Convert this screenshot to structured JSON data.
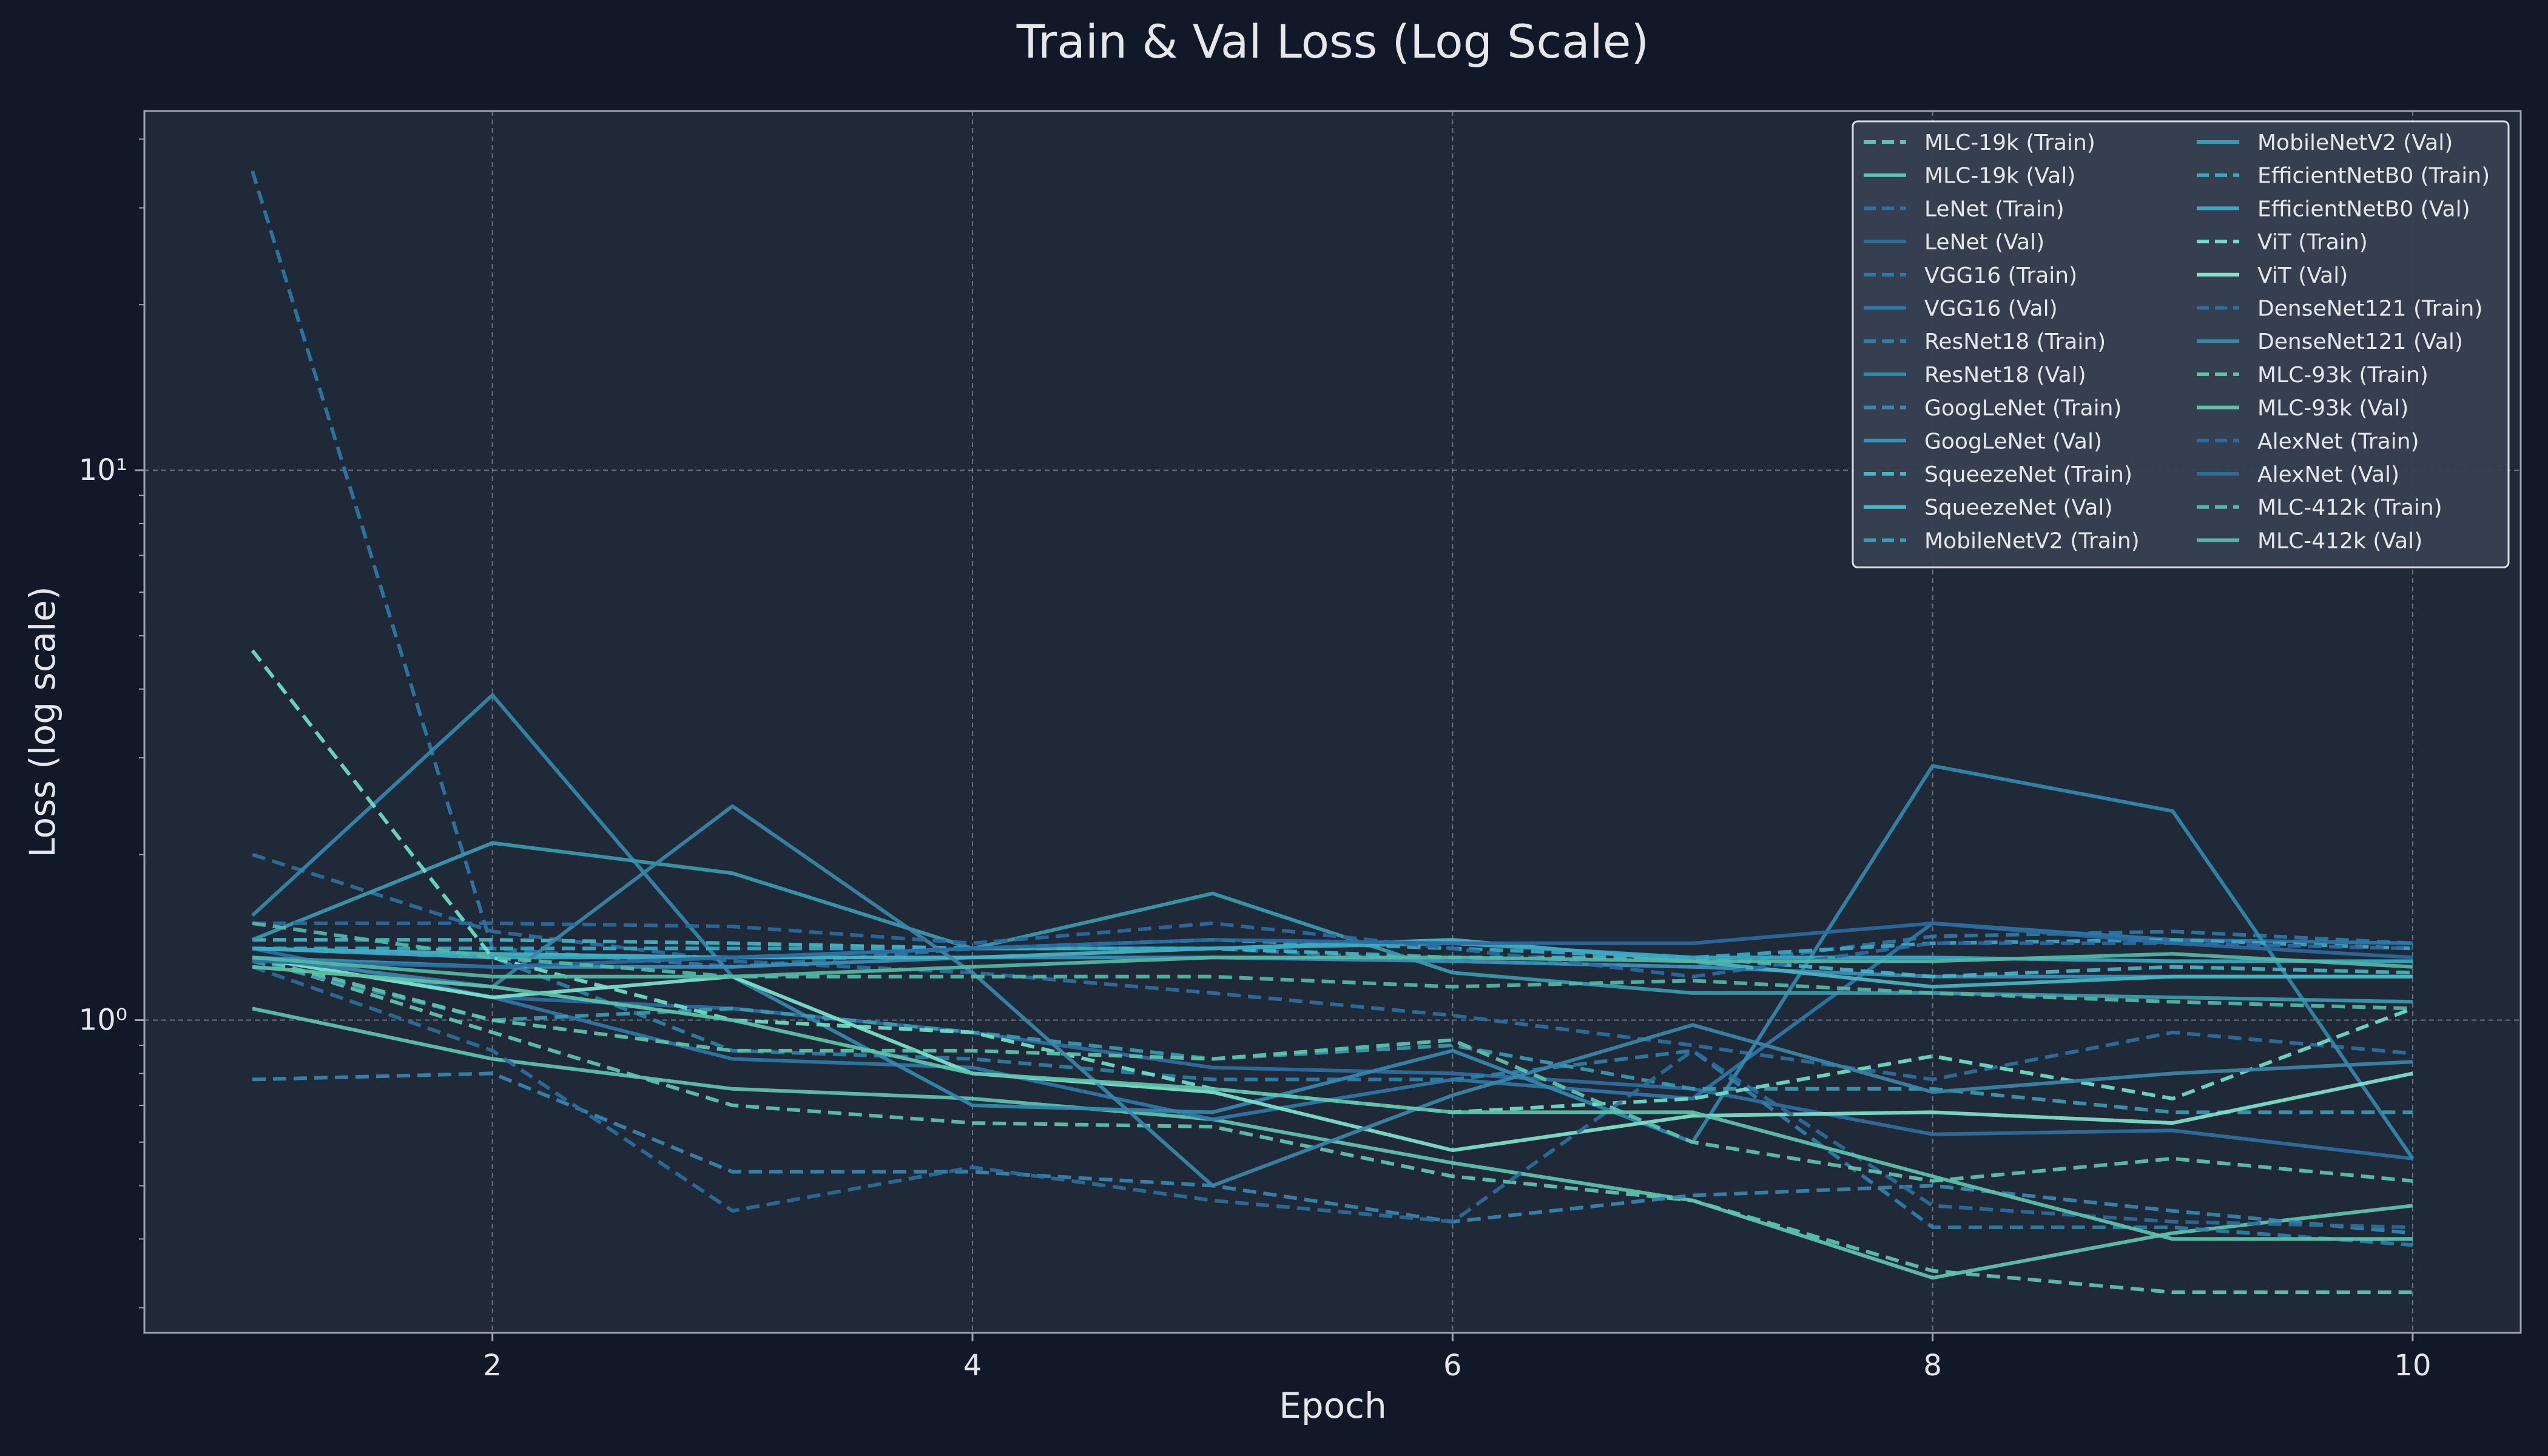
{
  "chart_data": {
    "type": "line",
    "title": "Train & Val Loss (Log Scale)",
    "xlabel": "Epoch",
    "ylabel": "Loss (log scale)",
    "x": [
      1,
      2,
      3,
      4,
      5,
      6,
      7,
      8,
      9,
      10
    ],
    "xlim": [
      0.55,
      10.45
    ],
    "ylim": [
      0.27,
      45
    ],
    "yscale": "log",
    "x_ticks": [
      "2",
      "4",
      "6",
      "8",
      "10"
    ],
    "y_ticks": [
      {
        "value": 1,
        "label": "10⁰"
      },
      {
        "value": 10,
        "label": "10¹"
      }
    ],
    "grid": true,
    "legend_position": "top-right",
    "legend_columns": 2,
    "colors": {
      "background": "#111827",
      "plot_bg": "#1f2937",
      "legend_bg": "#374151",
      "grid": "#9ca3af",
      "text": "#e5e7eb"
    },
    "series": [
      {
        "name": "MLC-19k (Train)",
        "style": "dashed",
        "color": "#5ec4b0",
        "values": [
          1.3,
          0.95,
          0.7,
          0.65,
          0.64,
          0.52,
          0.47,
          0.35,
          0.32,
          0.32
        ]
      },
      {
        "name": "MLC-19k (Val)",
        "style": "solid",
        "color": "#5ec4b0",
        "values": [
          1.05,
          0.85,
          0.75,
          0.72,
          0.66,
          0.55,
          0.47,
          0.34,
          0.41,
          0.46
        ]
      },
      {
        "name": "LeNet (Train)",
        "style": "dashed",
        "color": "#2f6f9f",
        "values": [
          2.0,
          1.45,
          1.28,
          1.22,
          1.12,
          1.02,
          0.9,
          0.78,
          0.95,
          0.87
        ]
      },
      {
        "name": "LeNet (Val)",
        "style": "solid",
        "color": "#2f6f9f",
        "values": [
          1.35,
          1.1,
          1.05,
          0.95,
          0.82,
          0.8,
          0.75,
          0.62,
          0.63,
          0.56
        ]
      },
      {
        "name": "VGG16 (Train)",
        "style": "dashed",
        "color": "#2f77a8",
        "values": [
          35,
          1.35,
          1.25,
          1.35,
          1.35,
          1.28,
          1.25,
          1.42,
          1.45,
          1.38
        ]
      },
      {
        "name": "VGG16 (Val)",
        "style": "solid",
        "color": "#2f77a8",
        "values": [
          1.3,
          1.1,
          0.85,
          0.82,
          0.66,
          0.78,
          0.72,
          1.5,
          1.4,
          1.38
        ]
      },
      {
        "name": "ResNet18 (Train)",
        "style": "dashed",
        "color": "#2e80a8",
        "values": [
          1.35,
          1.3,
          0.88,
          0.85,
          0.78,
          0.78,
          0.88,
          0.42,
          0.42,
          0.39
        ]
      },
      {
        "name": "ResNet18 (Val)",
        "style": "solid",
        "color": "#3289ad",
        "values": [
          1.55,
          3.9,
          1.2,
          0.7,
          0.68,
          0.88,
          0.6,
          2.9,
          2.4,
          0.56
        ]
      },
      {
        "name": "GoogLeNet (Train)",
        "style": "dashed",
        "color": "#3a85b0",
        "values": [
          0.78,
          0.8,
          0.53,
          0.53,
          0.5,
          0.43,
          0.48,
          0.5,
          0.45,
          0.41
        ]
      },
      {
        "name": "GoogLeNet (Val)",
        "style": "solid",
        "color": "#3b8fb8",
        "values": [
          1.3,
          1.25,
          1.25,
          1.3,
          1.3,
          1.28,
          1.25,
          1.2,
          1.2,
          1.2
        ]
      },
      {
        "name": "SqueezeNet (Train)",
        "style": "dashed",
        "color": "#47b5c5",
        "values": [
          1.4,
          1.4,
          1.38,
          1.35,
          1.35,
          1.3,
          1.3,
          1.2,
          1.25,
          1.22
        ]
      },
      {
        "name": "SqueezeNet (Val)",
        "style": "solid",
        "color": "#47b5c5",
        "values": [
          1.35,
          1.32,
          1.3,
          1.3,
          1.35,
          1.4,
          1.28,
          1.15,
          1.2,
          1.2
        ]
      },
      {
        "name": "MobileNetV2 (Train)",
        "style": "dashed",
        "color": "#3a9bb0",
        "values": [
          1.28,
          1.0,
          1.05,
          0.95,
          0.85,
          0.9,
          0.75,
          0.75,
          0.68,
          0.68
        ]
      },
      {
        "name": "MobileNetV2 (Val)",
        "style": "solid",
        "color": "#3a9bb0",
        "values": [
          1.4,
          2.1,
          1.85,
          1.35,
          1.7,
          1.22,
          1.12,
          1.12,
          1.1,
          1.08
        ]
      },
      {
        "name": "EfficientNetB0 (Train)",
        "style": "dashed",
        "color": "#3ba9c4",
        "values": [
          1.35,
          1.35,
          1.35,
          1.35,
          1.4,
          1.35,
          1.3,
          1.38,
          1.4,
          1.35
        ]
      },
      {
        "name": "EfficientNetB0 (Val)",
        "style": "solid",
        "color": "#3ba9c4",
        "values": [
          1.35,
          1.3,
          1.3,
          1.35,
          1.35,
          1.38,
          1.3,
          1.3,
          1.28,
          1.28
        ]
      },
      {
        "name": "ViT (Train)",
        "style": "dashed",
        "color": "#6ee0c8",
        "values": [
          4.7,
          1.3,
          1.0,
          0.95,
          0.75,
          0.68,
          0.72,
          0.86,
          0.72,
          1.05
        ]
      },
      {
        "name": "ViT (Val)",
        "style": "solid",
        "color": "#7fe3cc",
        "values": [
          1.3,
          1.1,
          1.2,
          0.8,
          0.74,
          0.58,
          0.67,
          0.68,
          0.65,
          0.8
        ]
      },
      {
        "name": "DenseNet121 (Train)",
        "style": "dashed",
        "color": "#2b6e9c",
        "values": [
          1.25,
          0.88,
          0.45,
          0.54,
          0.47,
          0.43,
          0.88,
          0.46,
          0.43,
          0.42
        ]
      },
      {
        "name": "DenseNet121 (Val)",
        "style": "solid",
        "color": "#3a86a8",
        "values": [
          1.3,
          1.15,
          2.45,
          1.22,
          0.5,
          0.73,
          0.98,
          0.74,
          0.8,
          0.84
        ]
      },
      {
        "name": "MLC-93k (Train)",
        "style": "dashed",
        "color": "#5dc4ac",
        "values": [
          1.3,
          1.0,
          0.88,
          0.88,
          0.85,
          0.92,
          0.6,
          0.51,
          0.56,
          0.51
        ]
      },
      {
        "name": "MLC-93k (Val)",
        "style": "solid",
        "color": "#5dc4ac",
        "values": [
          1.25,
          1.15,
          1.0,
          0.8,
          0.75,
          0.68,
          0.68,
          0.52,
          0.4,
          0.4
        ]
      },
      {
        "name": "AlexNet (Train)",
        "style": "dashed",
        "color": "#2a6ba0",
        "values": [
          1.5,
          1.5,
          1.48,
          1.38,
          1.5,
          1.35,
          1.2,
          1.38,
          1.38,
          1.35
        ]
      },
      {
        "name": "AlexNet (Val)",
        "style": "solid",
        "color": "#2a6ba0",
        "values": [
          1.28,
          1.25,
          1.3,
          1.35,
          1.4,
          1.38,
          1.38,
          1.5,
          1.38,
          1.3
        ]
      },
      {
        "name": "MLC-412k (Train)",
        "style": "dashed",
        "color": "#52b8a6",
        "values": [
          1.5,
          1.3,
          1.2,
          1.2,
          1.2,
          1.15,
          1.18,
          1.12,
          1.08,
          1.05
        ]
      },
      {
        "name": "MLC-412k (Val)",
        "style": "solid",
        "color": "#52b8a6",
        "values": [
          1.3,
          1.2,
          1.2,
          1.25,
          1.3,
          1.3,
          1.28,
          1.28,
          1.32,
          1.25
        ]
      }
    ]
  }
}
